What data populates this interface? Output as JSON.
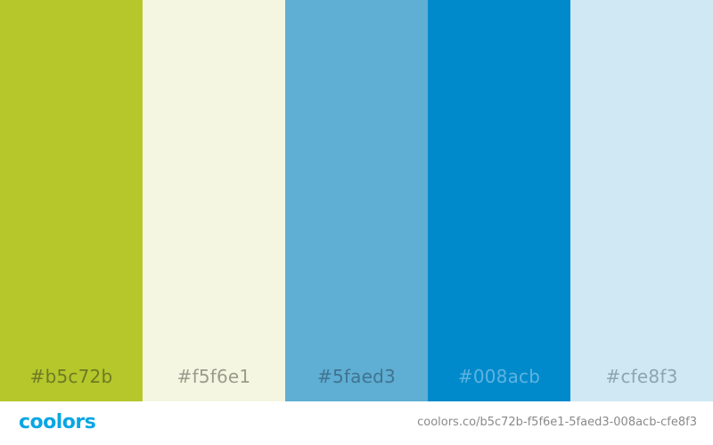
{
  "palette": {
    "swatches": [
      {
        "hex": "#b5c72b",
        "label": "#b5c72b",
        "label_color": "#6f7a24"
      },
      {
        "hex": "#f5f6e1",
        "label": "#f5f6e1",
        "label_color": "#9a9b8d"
      },
      {
        "hex": "#5faed3",
        "label": "#5faed3",
        "label_color": "#3f7490"
      },
      {
        "hex": "#008acb",
        "label": "#008acb",
        "label_color": "#5fb3e0"
      },
      {
        "hex": "#cfe8f3",
        "label": "#cfe8f3",
        "label_color": "#8fa4ae"
      }
    ]
  },
  "footer": {
    "logo_text": "coolors",
    "url": "coolors.co/b5c72b-f5f6e1-5faed3-008acb-cfe8f3"
  }
}
